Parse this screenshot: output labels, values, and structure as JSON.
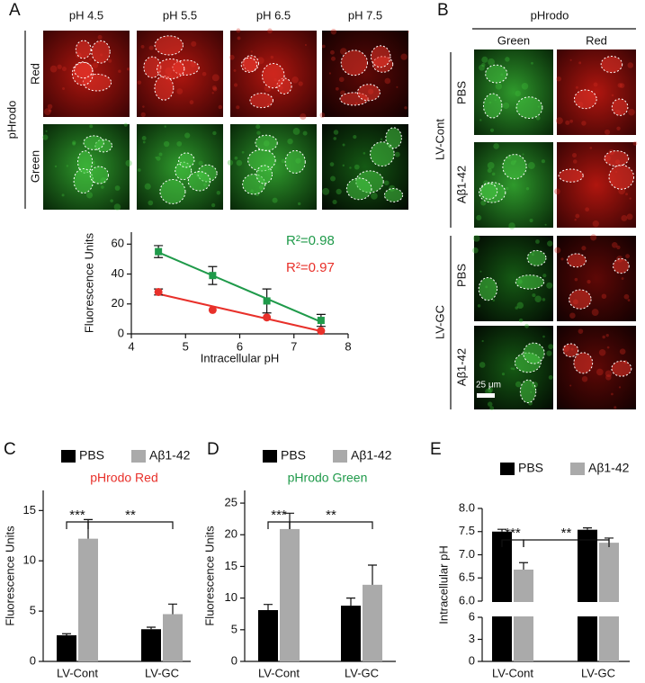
{
  "panels": {
    "letters": [
      "A",
      "B",
      "C",
      "D",
      "E"
    ],
    "a_columns": [
      "pH 4.5",
      "pH 5.5",
      "pH 6.5",
      "pH 7.5"
    ],
    "a_rows": [
      "Red",
      "Green"
    ],
    "a_dye": "pHrodo",
    "b_dye": "pHrodo",
    "b_columns": [
      "Green",
      "Red"
    ],
    "b_groups": [
      {
        "label": "LV-Cont",
        "rows": [
          "PBS",
          "Aβ1-42"
        ]
      },
      {
        "label": "LV-GC",
        "rows": [
          "PBS",
          "Aβ1-42"
        ]
      }
    ],
    "scale_bar": "25 μm"
  },
  "chart_data": [
    {
      "type": "line",
      "xlabel": "Intracellular pH",
      "ylabel": "Fluorescence Units",
      "x": [
        4.5,
        5.5,
        6.5,
        7.5
      ],
      "xlim": [
        4,
        8
      ],
      "xticks": [
        4,
        5,
        6,
        7,
        8
      ],
      "ylim": [
        0,
        68
      ],
      "yticks": [
        0,
        20,
        40,
        60
      ],
      "fit": true,
      "series": [
        {
          "color": "#1f9a4a",
          "marker": "square",
          "values": [
            55,
            39,
            22,
            9
          ],
          "errors": [
            4,
            6,
            8,
            4
          ],
          "fit_label": "R²=0.98"
        },
        {
          "color": "#e8302a",
          "marker": "circle",
          "values": [
            28,
            16,
            11,
            2
          ],
          "errors": [
            2,
            0,
            0,
            0
          ],
          "fit_label": "R²=0.97"
        }
      ]
    },
    {
      "type": "bar",
      "title": "pHrodo Red",
      "title_color": "#e8302a",
      "ylabel": "Fluorescence Units",
      "categories": [
        "LV-Cont",
        "LV-GC"
      ],
      "ylim": [
        0,
        17
      ],
      "yticks": [
        0,
        5,
        10,
        15
      ],
      "series": [
        {
          "name": "PBS",
          "color": "#000000",
          "values": [
            2.6,
            3.2
          ],
          "errors": [
            0.15,
            0.2
          ]
        },
        {
          "name": "Aβ1-42",
          "color": "#aaaaaa",
          "values": [
            12.2,
            4.7
          ],
          "errors": [
            1.9,
            1.0
          ]
        }
      ],
      "significance": [
        "***",
        "**"
      ]
    },
    {
      "type": "bar",
      "title": "pHrodo Green",
      "title_color": "#1f9a4a",
      "ylabel": "Fluorescence Units",
      "categories": [
        "LV-Cont",
        "LV-GC"
      ],
      "ylim": [
        0,
        27
      ],
      "yticks": [
        0,
        5,
        10,
        15,
        20,
        25
      ],
      "series": [
        {
          "name": "PBS",
          "color": "#000000",
          "values": [
            8.1,
            8.8
          ],
          "errors": [
            0.9,
            1.2
          ]
        },
        {
          "name": "Aβ1-42",
          "color": "#aaaaaa",
          "values": [
            20.9,
            12.1
          ],
          "errors": [
            2.5,
            3.1
          ]
        }
      ],
      "significance": [
        "***",
        "**"
      ]
    },
    {
      "type": "bar",
      "ylabel": "Intracellular pH",
      "categories": [
        "LV-Cont",
        "LV-GC"
      ],
      "segments": [
        {
          "ylim": [
            0,
            6
          ],
          "yticks": [
            0,
            3,
            6
          ]
        },
        {
          "ylim": [
            6,
            8
          ],
          "yticks": [
            {
              "value": 6,
              "label": "6.0"
            },
            6.5,
            {
              "value": 7,
              "label": "7.0"
            },
            7.5,
            {
              "value": 8,
              "label": "8.0"
            }
          ]
        }
      ],
      "series": [
        {
          "name": "PBS",
          "color": "#000000",
          "values": [
            7.5,
            7.54
          ],
          "errors": [
            0.05,
            0.04
          ]
        },
        {
          "name": "Aβ1-42",
          "color": "#aaaaaa",
          "values": [
            6.68,
            7.26
          ],
          "errors": [
            0.15,
            0.1
          ]
        }
      ],
      "significance": [
        "***",
        "**"
      ]
    }
  ]
}
